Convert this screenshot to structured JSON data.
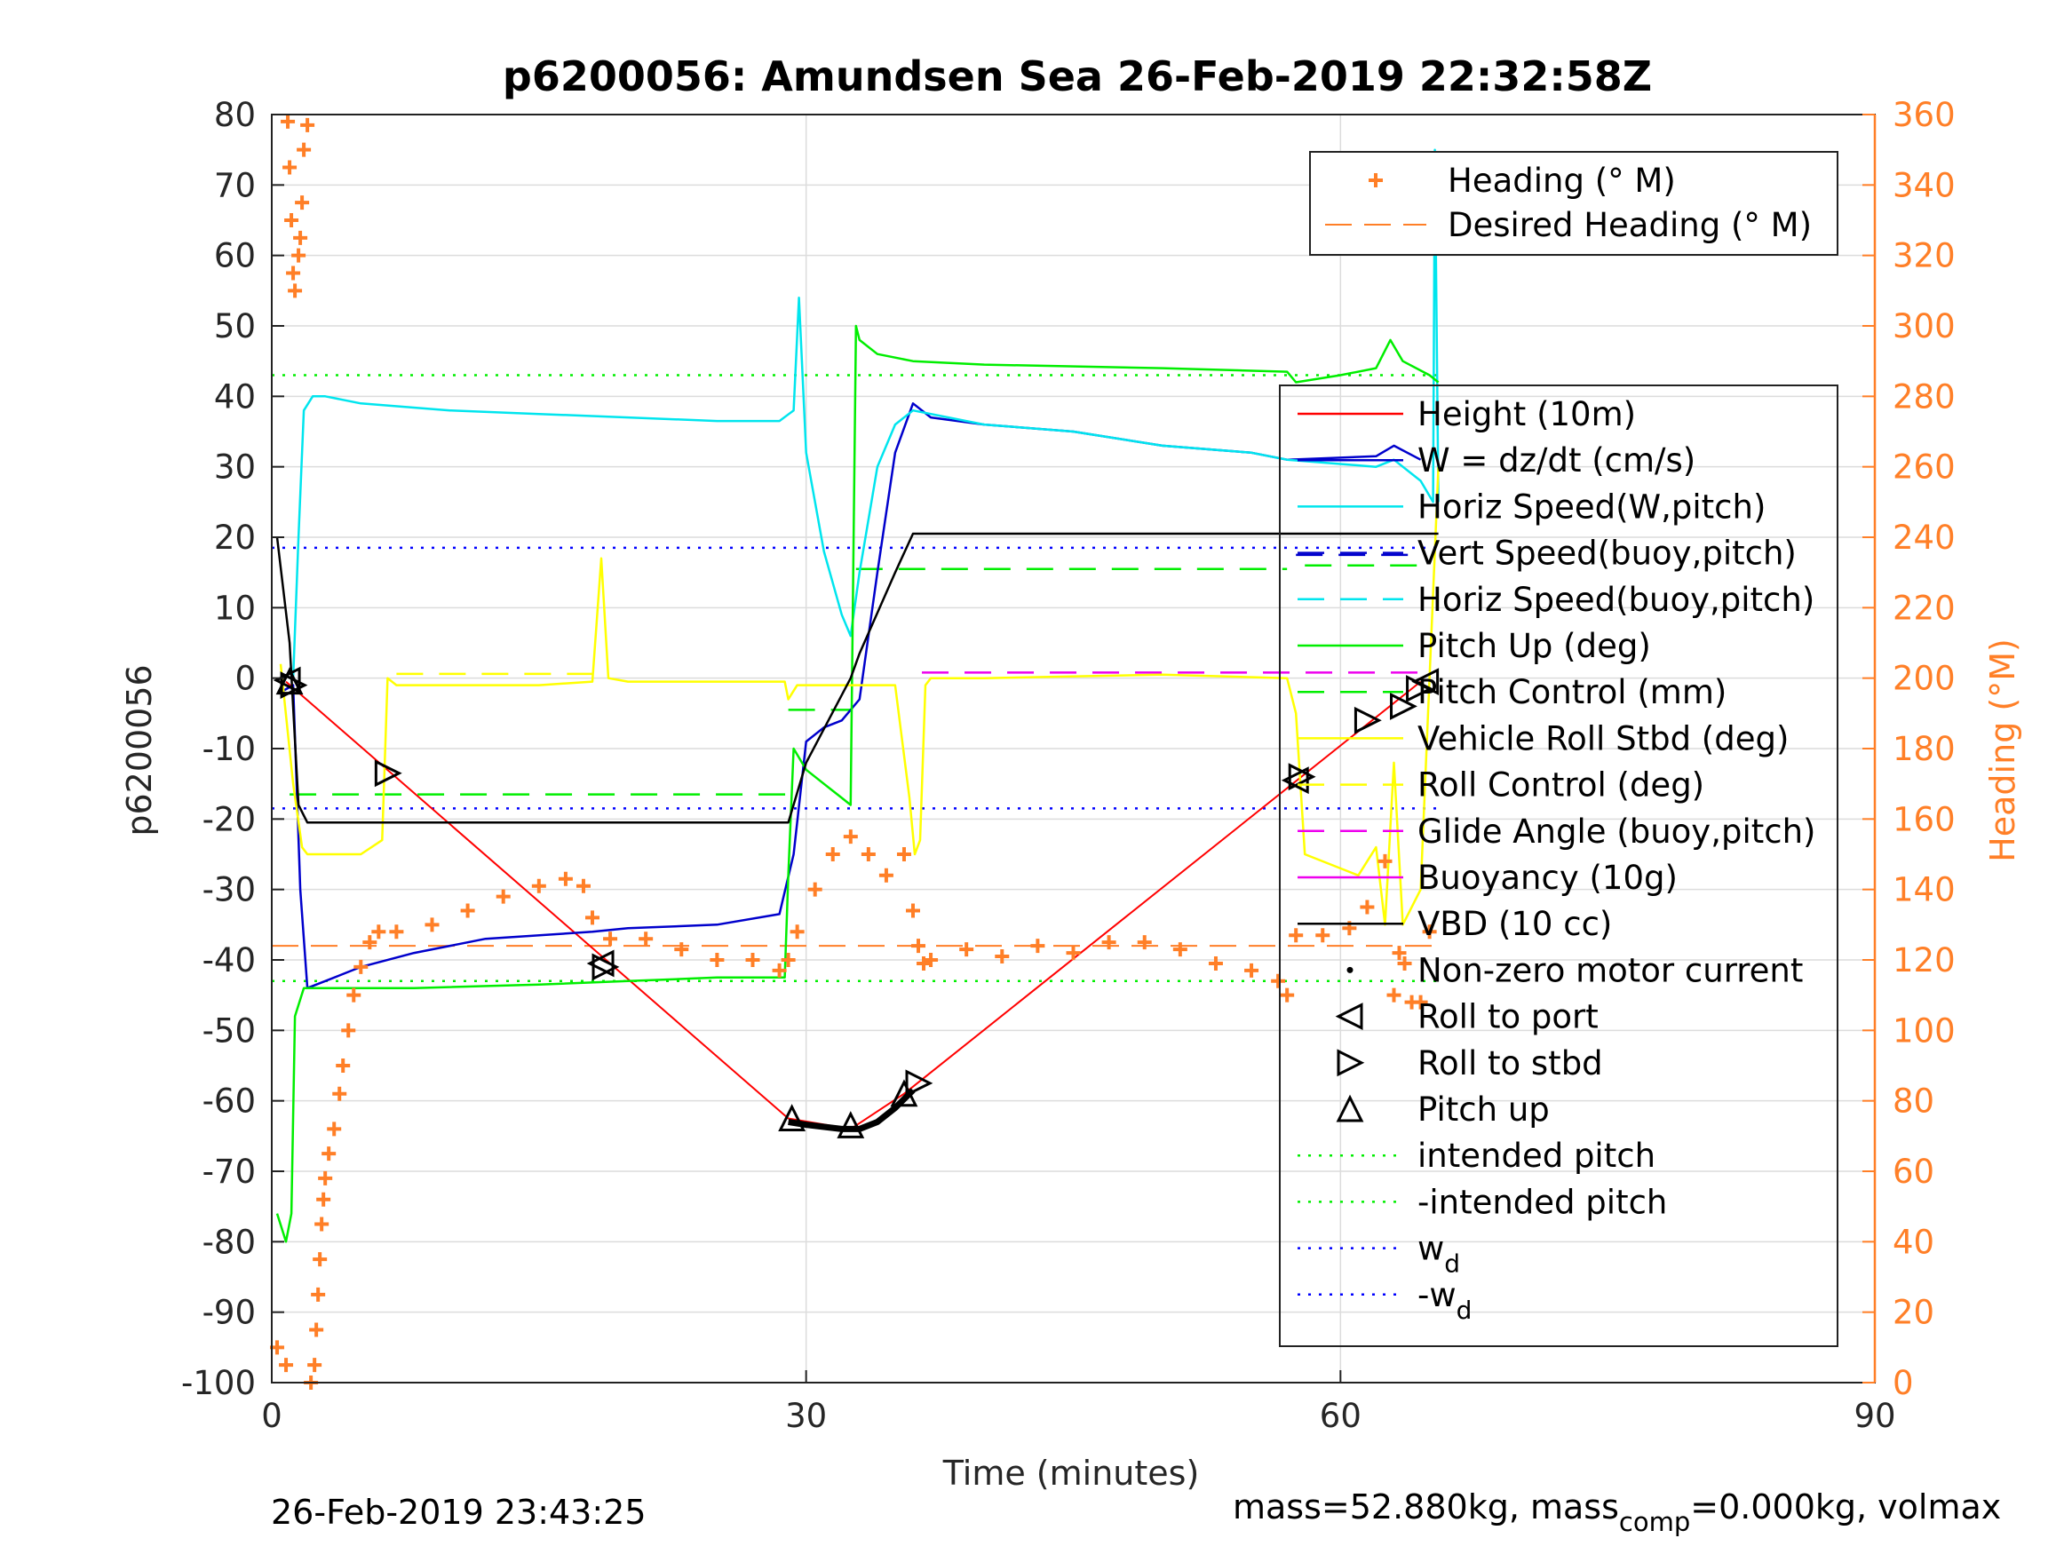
{
  "chart_data": {
    "type": "line",
    "title": "p6200056: Amundsen Sea 26-Feb-2019 22:32:58Z",
    "xlabel": "Time (minutes)",
    "ylabel": "p6200056",
    "y2label": "Heading (°M)",
    "xlim": [
      0,
      90
    ],
    "ylim": [
      -100,
      80
    ],
    "y2lim": [
      0,
      360
    ],
    "grid": true,
    "x_ticks": [
      "0",
      "30",
      "60",
      "90"
    ],
    "y_ticks": [
      "80",
      "70",
      "60",
      "50",
      "40",
      "30",
      "20",
      "10",
      "0",
      "-10",
      "-20",
      "-30",
      "-40",
      "-50",
      "-60",
      "-70",
      "-80",
      "-90",
      "-100"
    ],
    "y2_ticks": [
      "360",
      "340",
      "320",
      "300",
      "280",
      "260",
      "240",
      "220",
      "200",
      "180",
      "160",
      "140",
      "120",
      "100",
      "80",
      "60",
      "40",
      "20",
      "0"
    ],
    "footer_left": "26-Feb-2019 23:43:25",
    "footer_right": {
      "prefix": "mass=52.880kg, mass",
      "sub": "comp",
      "suffix": "=0.000kg, volmax"
    },
    "colors": {
      "height": "#ff0000",
      "w": "#0000cc",
      "horiz_speed": "#00e5ee",
      "pitch": "#00ee00",
      "roll": "#ffff00",
      "glide": "#ee00ee",
      "vbd": "#000000",
      "heading": "#ff7f27",
      "wd": "#0000ff"
    },
    "legend_top": [
      {
        "label": "Heading (° M)",
        "style": "plus",
        "color": "#ff7f27"
      },
      {
        "label": "Desired Heading (° M)",
        "style": "dash",
        "color": "#ff7f27"
      }
    ],
    "legend_main": [
      {
        "label": "Height (10m)",
        "style": "solid",
        "color": "#ff0000"
      },
      {
        "label": "W = dz/dt (cm/s)",
        "style": "solid",
        "color": "#0000cc"
      },
      {
        "label": "Horiz Speed(W,pitch)",
        "style": "solid",
        "color": "#00e5ee"
      },
      {
        "label": "Vert Speed(buoy,pitch)",
        "style": "dash",
        "color": "#0000cc"
      },
      {
        "label": "Horiz Speed(buoy,pitch)",
        "style": "dash",
        "color": "#00e5ee"
      },
      {
        "label": "Pitch Up (deg)",
        "style": "solid",
        "color": "#00ee00"
      },
      {
        "label": "Pitch Control (mm)",
        "style": "dash",
        "color": "#00ee00"
      },
      {
        "label": "Vehicle Roll Stbd (deg)",
        "style": "solid",
        "color": "#ffff00"
      },
      {
        "label": "Roll Control (deg)",
        "style": "dash",
        "color": "#ffff00"
      },
      {
        "label": "Glide Angle (buoy,pitch)",
        "style": "dash",
        "color": "#ee00ee"
      },
      {
        "label": "Buoyancy (10g)",
        "style": "solid",
        "color": "#ee00ee"
      },
      {
        "label": "VBD (10 cc)",
        "style": "solid",
        "color": "#000000"
      },
      {
        "label": "Non-zero motor current",
        "style": "dot",
        "color": "#000000"
      },
      {
        "label": "Roll to port",
        "style": "tri-left",
        "color": "#000000"
      },
      {
        "label": "Roll to stbd",
        "style": "tri-right",
        "color": "#000000"
      },
      {
        "label": "Pitch up",
        "style": "tri-up",
        "color": "#000000"
      },
      {
        "label": "intended pitch",
        "style": "dotted",
        "color": "#00ee00"
      },
      {
        "label": "-intended pitch",
        "style": "dotted",
        "color": "#00ee00"
      },
      {
        "label": "w",
        "sub": "d",
        "style": "dotted",
        "color": "#0000ff"
      },
      {
        "label": "-w",
        "sub": "d",
        "style": "dotted",
        "color": "#0000ff"
      }
    ],
    "series": [
      {
        "name": "Height (10m)",
        "key": "height",
        "x": [
          0.8,
          29,
          32.5,
          35.5,
          64.5
        ],
        "y": [
          -0.5,
          -62.5,
          -64,
          -59,
          -0.5
        ]
      },
      {
        "name": "W = dz/dt (cm/s)",
        "key": "w",
        "x": [
          0.5,
          1.2,
          1.6,
          2.0,
          3,
          5,
          8,
          12,
          18,
          20,
          25,
          28.5,
          29.3,
          30,
          31,
          32,
          33,
          34,
          35,
          36,
          37,
          40,
          45,
          50,
          55,
          57,
          62,
          63,
          64.5
        ],
        "y": [
          -2,
          -1,
          -30,
          -44,
          -43,
          -41,
          -39,
          -37,
          -36,
          -35.5,
          -35,
          -33.5,
          -25,
          -9,
          -7,
          -6,
          -3,
          15,
          32,
          39,
          37,
          36,
          35,
          33,
          32,
          31,
          31.5,
          33,
          31
        ]
      },
      {
        "name": "Horiz Speed(W,pitch)",
        "key": "horiz_speed",
        "x": [
          1.2,
          1.5,
          1.8,
          2.3,
          3,
          5,
          10,
          15,
          20,
          25,
          28.5,
          29.3,
          29.6,
          30,
          31,
          32,
          32.5,
          33,
          34,
          35,
          36,
          40,
          45,
          50,
          55,
          57,
          62,
          63,
          64.5,
          65.2,
          65.3,
          65.5
        ],
        "y": [
          0,
          20,
          38,
          40,
          40,
          39,
          38,
          37.5,
          37,
          36.5,
          36.5,
          38,
          54,
          32,
          18,
          9,
          6,
          15,
          30,
          36,
          38,
          36,
          35,
          33,
          32,
          31,
          30,
          31,
          28,
          25,
          75,
          25
        ]
      },
      {
        "name": "Pitch Up (deg)",
        "key": "pitch",
        "x": [
          0.3,
          0.8,
          1.1,
          1.3,
          1.8,
          3,
          8,
          15,
          20,
          25,
          28.8,
          29,
          29.3,
          30,
          31,
          32,
          32.5,
          32.8,
          33,
          34,
          36,
          40,
          50,
          57,
          57.5,
          60,
          62,
          62.8,
          63.5,
          65,
          65.5
        ],
        "y": [
          -76,
          -80,
          -76,
          -48,
          -44,
          -44,
          -44,
          -43.5,
          -43,
          -42.5,
          -42.5,
          -28,
          -10,
          -13,
          -15,
          -17,
          -18,
          50,
          48,
          46,
          45,
          44.5,
          44,
          43.5,
          42,
          43,
          44,
          48,
          45,
          43,
          42
        ]
      },
      {
        "name": "Vehicle Roll Stbd (deg)",
        "key": "roll",
        "x": [
          0.5,
          1.2,
          1.7,
          2,
          5,
          6.2,
          6.5,
          7,
          15,
          18,
          18.5,
          18.9,
          20,
          28.8,
          29,
          29.5,
          35,
          35.8,
          36.1,
          36.4,
          36.7,
          37,
          40,
          50,
          57,
          57.5,
          58,
          61,
          62,
          62.5,
          63,
          63.5,
          64.5,
          65.5
        ],
        "y": [
          2,
          -15,
          -24,
          -25,
          -25,
          -23,
          0,
          -1,
          -1,
          -0.5,
          17,
          0,
          -0.5,
          -0.5,
          -3,
          -1,
          -1,
          -17,
          -25,
          -23,
          -1,
          0,
          0,
          0.5,
          0,
          -5,
          -25,
          -28,
          -24,
          -35,
          -12,
          -35,
          -30,
          30
        ]
      },
      {
        "name": "VBD (10 cc)",
        "key": "vbd",
        "x": [
          0.3,
          1,
          1.5,
          2,
          29,
          30,
          32.5,
          33,
          35,
          36,
          65.5
        ],
        "y": [
          20,
          5,
          -18,
          -20.5,
          -20.5,
          -12,
          0,
          3.5,
          15,
          20.5,
          20.5
        ]
      },
      {
        "name": "Heading (° M)",
        "key": "heading",
        "x": [
          0.3,
          0.8,
          0.9,
          1.0,
          1.1,
          1.2,
          1.3,
          1.5,
          1.6,
          1.7,
          1.8,
          2.0,
          2.2,
          2.4,
          2.5,
          2.6,
          2.7,
          2.8,
          2.9,
          3.0,
          3.2,
          3.5,
          3.8,
          4.0,
          4.3,
          4.6,
          5.0,
          5.5,
          6,
          7,
          9,
          11,
          13,
          15,
          16.5,
          17.5,
          18,
          19,
          21,
          23,
          25,
          27,
          28.5,
          29,
          29.5,
          30.5,
          31.5,
          32.5,
          33.5,
          34.5,
          35.5,
          36,
          36.3,
          36.6,
          37,
          39,
          41,
          43,
          45,
          47,
          49,
          51,
          53,
          55,
          56.5,
          57,
          57.5,
          59,
          60.5,
          61.5,
          62.5,
          63,
          63.3,
          63.6,
          64,
          64.5,
          65
        ],
        "y": [
          10,
          5,
          358,
          345,
          330,
          315,
          310,
          320,
          325,
          335,
          350,
          357,
          0,
          5,
          15,
          25,
          35,
          45,
          52,
          58,
          65,
          72,
          82,
          90,
          100,
          110,
          118,
          125,
          128,
          128,
          130,
          134,
          138,
          141,
          143,
          141,
          132,
          126,
          126,
          123,
          120,
          120,
          117,
          120,
          128,
          140,
          150,
          155,
          150,
          144,
          150,
          134,
          124,
          119,
          120,
          123,
          121,
          124,
          122,
          125,
          125,
          123,
          119,
          117,
          114,
          110,
          127,
          127,
          129,
          135,
          148,
          110,
          122,
          119,
          108,
          108,
          128
        ]
      }
    ],
    "desired_heading": 124,
    "ref_lines": {
      "intended_pitch": 43,
      "neg_intended_pitch": -43,
      "wd": 18.5,
      "neg_wd": -18.5
    },
    "segments": [
      {
        "key": "pitch_ctrl",
        "x": [
          1,
          29
        ],
        "y": -16.5
      },
      {
        "key": "pitch_ctrl",
        "x": [
          29,
          32.5
        ],
        "y": -4.5
      },
      {
        "key": "pitch_ctrl",
        "x": [
          32.8,
          57
        ],
        "y": 15.5
      },
      {
        "key": "pitch_ctrl",
        "x": [
          58,
          65
        ],
        "y": 16
      },
      {
        "key": "roll_ctrl",
        "x": [
          7,
          18
        ],
        "y": 0.6
      },
      {
        "key": "glide",
        "x": [
          36.5,
          65
        ],
        "y": 0.8
      },
      {
        "key": "vert_dash",
        "x": [
          57.5,
          64.5
        ],
        "y": 17.5
      }
    ],
    "markers": {
      "roll_port": [
        [
          0.9,
          -0.3
        ],
        [
          18.5,
          -40.5
        ],
        [
          64.8,
          -0.5
        ],
        [
          57.5,
          -14.5
        ]
      ],
      "roll_stbd": [
        [
          1.2,
          -1
        ],
        [
          6.5,
          -13.5
        ],
        [
          18.7,
          -41
        ],
        [
          36.3,
          -57.5
        ],
        [
          63.5,
          -4
        ],
        [
          61.5,
          -6
        ],
        [
          64.4,
          -1.5
        ],
        [
          57.8,
          -14
        ]
      ],
      "pitch_up": [
        [
          1.0,
          -0.5
        ],
        [
          29.2,
          -62.5
        ],
        [
          32.5,
          -63.5
        ],
        [
          35.5,
          -59
        ]
      ]
    },
    "motor_path": {
      "x": [
        29,
        30,
        31,
        32,
        33,
        34,
        35,
        36
      ],
      "y": [
        -63,
        -63.4,
        -63.7,
        -64,
        -64,
        -63,
        -61,
        -58.5
      ]
    }
  }
}
